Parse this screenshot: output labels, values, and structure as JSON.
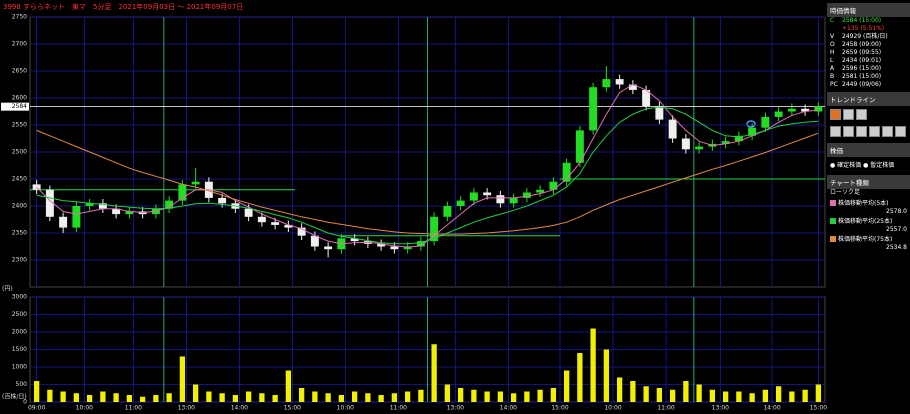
{
  "chart_data": [
    {
      "type": "candlestick",
      "title": "3998 すららネット　東マ　5分足　2021年09月03日 ～ 2021年09月07日",
      "name": "ローソク足",
      "unit_label": "(円)",
      "ylim": [
        2250,
        2750
      ],
      "yticks": [
        2300,
        2350,
        2400,
        2450,
        2500,
        2550,
        2600,
        2650,
        2700,
        2750
      ],
      "grid": true,
      "up_color": "#22dd22",
      "down_color": "#f0f0f0",
      "open": [
        2440,
        2430,
        2380,
        2360,
        2400,
        2405,
        2395,
        2385,
        2390,
        2385,
        2395,
        2410,
        2440,
        2445,
        2415,
        2405,
        2395,
        2380,
        2370,
        2365,
        2360,
        2345,
        2325,
        2320,
        2340,
        2335,
        2330,
        2325,
        2320,
        2325,
        2335,
        2380,
        2400,
        2410,
        2425,
        2420,
        2405,
        2415,
        2425,
        2430,
        2445,
        2480,
        2540,
        2620,
        2635,
        2625,
        2615,
        2585,
        2560,
        2525,
        2505,
        2510,
        2515,
        2520,
        2530,
        2545,
        2565,
        2575,
        2580,
        2575
      ],
      "high": [
        2448,
        2438,
        2388,
        2408,
        2413,
        2413,
        2403,
        2398,
        2398,
        2403,
        2418,
        2448,
        2470,
        2453,
        2423,
        2413,
        2403,
        2388,
        2378,
        2373,
        2368,
        2353,
        2333,
        2348,
        2348,
        2343,
        2338,
        2333,
        2333,
        2343,
        2388,
        2408,
        2418,
        2433,
        2433,
        2428,
        2423,
        2433,
        2438,
        2453,
        2488,
        2548,
        2628,
        2659,
        2643,
        2633,
        2623,
        2593,
        2568,
        2533,
        2518,
        2523,
        2528,
        2538,
        2553,
        2573,
        2583,
        2590,
        2588,
        2592
      ],
      "low": [
        2422,
        2372,
        2350,
        2352,
        2392,
        2387,
        2377,
        2377,
        2377,
        2377,
        2387,
        2402,
        2432,
        2407,
        2397,
        2387,
        2372,
        2362,
        2357,
        2352,
        2337,
        2317,
        2305,
        2312,
        2327,
        2322,
        2317,
        2312,
        2312,
        2317,
        2327,
        2372,
        2392,
        2402,
        2412,
        2397,
        2397,
        2407,
        2417,
        2422,
        2437,
        2472,
        2532,
        2612,
        2617,
        2607,
        2577,
        2552,
        2517,
        2497,
        2497,
        2502,
        2507,
        2512,
        2522,
        2537,
        2557,
        2567,
        2567,
        2567
      ],
      "close": [
        2430,
        2380,
        2360,
        2400,
        2405,
        2395,
        2385,
        2390,
        2385,
        2395,
        2410,
        2440,
        2445,
        2415,
        2405,
        2395,
        2380,
        2370,
        2365,
        2360,
        2345,
        2325,
        2320,
        2340,
        2335,
        2330,
        2325,
        2320,
        2325,
        2335,
        2380,
        2400,
        2410,
        2425,
        2420,
        2405,
        2415,
        2425,
        2430,
        2445,
        2480,
        2540,
        2620,
        2635,
        2625,
        2615,
        2585,
        2560,
        2525,
        2505,
        2510,
        2515,
        2520,
        2530,
        2545,
        2565,
        2575,
        2580,
        2575,
        2584
      ],
      "moving_averages": [
        {
          "name": "株価移動平均(5本)",
          "color": "#e070b0",
          "latest_label": "2578.0",
          "values": [
            2435,
            2410,
            2390,
            2385,
            2390,
            2395,
            2395,
            2390,
            2388,
            2390,
            2398,
            2415,
            2430,
            2430,
            2425,
            2410,
            2398,
            2385,
            2375,
            2365,
            2358,
            2345,
            2335,
            2330,
            2332,
            2333,
            2330,
            2326,
            2324,
            2326,
            2345,
            2365,
            2385,
            2405,
            2415,
            2415,
            2415,
            2418,
            2423,
            2430,
            2450,
            2480,
            2525,
            2570,
            2610,
            2625,
            2615,
            2595,
            2565,
            2540,
            2520,
            2512,
            2515,
            2520,
            2530,
            2540,
            2555,
            2568,
            2575,
            2578
          ]
        },
        {
          "name": "株価移動平均(25本)",
          "color": "#22cc44",
          "latest_label": "2557.0",
          "values": [
            2420,
            2415,
            2410,
            2408,
            2405,
            2403,
            2400,
            2398,
            2396,
            2395,
            2396,
            2400,
            2404,
            2405,
            2403,
            2400,
            2396,
            2390,
            2384,
            2378,
            2370,
            2360,
            2350,
            2344,
            2340,
            2336,
            2332,
            2330,
            2330,
            2332,
            2340,
            2350,
            2360,
            2370,
            2378,
            2385,
            2392,
            2400,
            2410,
            2420,
            2435,
            2460,
            2500,
            2530,
            2555,
            2570,
            2580,
            2583,
            2580,
            2570,
            2555,
            2540,
            2530,
            2528,
            2532,
            2540,
            2548,
            2552,
            2555,
            2557
          ]
        },
        {
          "name": "株価移動平均(75本)",
          "color": "#e08a40",
          "latest_label": "2534.8",
          "values": [
            2540,
            2530,
            2520,
            2510,
            2500,
            2490,
            2480,
            2470,
            2462,
            2455,
            2448,
            2440,
            2435,
            2428,
            2420,
            2412,
            2405,
            2398,
            2392,
            2386,
            2380,
            2375,
            2370,
            2366,
            2362,
            2358,
            2355,
            2352,
            2350,
            2349,
            2348,
            2348,
            2348,
            2349,
            2350,
            2352,
            2354,
            2357,
            2360,
            2364,
            2370,
            2380,
            2392,
            2402,
            2412,
            2420,
            2428,
            2436,
            2444,
            2452,
            2460,
            2468,
            2475,
            2483,
            2491,
            2499,
            2508,
            2517,
            2526,
            2534.8
          ]
        }
      ],
      "trend_lines": [
        {
          "value": 2430,
          "x_range": [
            0,
            20
          ],
          "color": "#22dd44"
        },
        {
          "value": 2345,
          "x_range": [
            23.4,
            40
          ],
          "color": "#22dd44"
        },
        {
          "value": 2450,
          "x_range": [
            40,
            60
          ],
          "color": "#22dd44"
        }
      ],
      "last_price": 2584,
      "day_separators": [
        10.1,
        30,
        50.1
      ]
    },
    {
      "type": "bar",
      "unit_label": "(百株/日)",
      "ylim": [
        0,
        3000
      ],
      "yticks": [
        0,
        500,
        1000,
        1500,
        2000,
        2500,
        3000
      ],
      "grid": true,
      "color": "#f0f000",
      "values": [
        600,
        350,
        300,
        250,
        200,
        300,
        250,
        200,
        150,
        200,
        250,
        1300,
        500,
        300,
        250,
        200,
        300,
        250,
        200,
        900,
        400,
        300,
        250,
        200,
        300,
        250,
        200,
        250,
        300,
        350,
        1650,
        500,
        400,
        350,
        300,
        300,
        250,
        300,
        350,
        400,
        900,
        1400,
        2100,
        1500,
        700,
        600,
        450,
        400,
        350,
        600,
        500,
        350,
        300,
        300,
        250,
        350,
        450,
        300,
        350,
        500
      ],
      "xticks": [
        {
          "value": 0.5,
          "label": "09:00"
        },
        {
          "value": 4.1,
          "label": "10:00"
        },
        {
          "value": 7.8,
          "label": "11:00"
        },
        {
          "value": 11.8,
          "label": "13:00"
        },
        {
          "value": 15.8,
          "label": "14:00"
        },
        {
          "value": 19.8,
          "label": "15:00"
        },
        {
          "value": 23.8,
          "label": "10:00"
        },
        {
          "value": 27.8,
          "label": "11:00"
        },
        {
          "value": 32.1,
          "label": "13:00"
        },
        {
          "value": 36.1,
          "label": "14:00"
        },
        {
          "value": 40,
          "label": "15:00"
        },
        {
          "value": 44,
          "label": "10:00"
        },
        {
          "value": 48,
          "label": "11:00"
        },
        {
          "value": 52.1,
          "label": "13:00"
        },
        {
          "value": 56,
          "label": "14:00"
        },
        {
          "value": 59.5,
          "label": "15:00"
        }
      ]
    }
  ],
  "side_panel": {
    "quote": {
      "header": "時価情報",
      "rows": [
        {
          "label": "C",
          "text": "2584 (15:00)"
        },
        {
          "text": "+135 (5.51%)"
        },
        {
          "label": "V",
          "text": "24929 (百株/日)"
        },
        {
          "label": "O",
          "text": "2458 (09:00)"
        },
        {
          "label": "H",
          "text": "2659 (09:55)"
        },
        {
          "label": "L",
          "text": "2434 (09:01)"
        },
        {
          "label": "A",
          "text": "2596 (15:00)"
        },
        {
          "label": "B",
          "text": "2581 (15:00)"
        },
        {
          "label": "PC",
          "text": "2449 (09/06)"
        }
      ]
    },
    "trendline": {
      "header": "トレンドライン"
    },
    "price_mode": {
      "header": "株価",
      "options": [
        "確定株価",
        "暫定株価"
      ]
    },
    "chart_kind": {
      "header": "チャート種類"
    }
  }
}
